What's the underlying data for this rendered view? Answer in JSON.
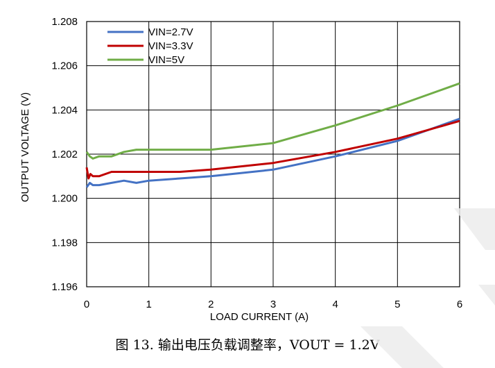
{
  "chart_data": {
    "type": "line",
    "xlabel": "LOAD CURRENT (A)",
    "ylabel": "OUTPUT VOLTAGE (V)",
    "xlim": [
      0,
      6
    ],
    "ylim": [
      1.196,
      1.208
    ],
    "x_ticks": [
      "0",
      "1",
      "2",
      "3",
      "4",
      "5",
      "6"
    ],
    "y_ticks": [
      "1.196",
      "1.198",
      "1.200",
      "1.202",
      "1.204",
      "1.206",
      "1.208"
    ],
    "grid": true,
    "legend_position": "top-left",
    "series": [
      {
        "name": "VIN=2.7V",
        "color": "#4472c4",
        "x": [
          0,
          0.05,
          0.1,
          0.2,
          0.4,
          0.6,
          0.8,
          1.0,
          1.5,
          2.0,
          3.0,
          4.0,
          5.0,
          6.0
        ],
        "y": [
          1.2005,
          1.2007,
          1.2006,
          1.2006,
          1.2007,
          1.2008,
          1.2007,
          1.2008,
          1.2009,
          1.201,
          1.2013,
          1.2019,
          1.2026,
          1.2036
        ]
      },
      {
        "name": "VIN=3.3V",
        "color": "#c00000",
        "x": [
          0,
          0.03,
          0.06,
          0.1,
          0.2,
          0.4,
          0.6,
          0.8,
          1.0,
          1.5,
          2.0,
          3.0,
          4.0,
          5.0,
          6.0
        ],
        "y": [
          1.2014,
          1.2009,
          1.2011,
          1.201,
          1.201,
          1.2012,
          1.2012,
          1.2012,
          1.2012,
          1.2012,
          1.2013,
          1.2016,
          1.2021,
          1.2027,
          1.2035
        ]
      },
      {
        "name": "VIN=5V",
        "color": "#70ad47",
        "x": [
          0,
          0.05,
          0.1,
          0.2,
          0.4,
          0.6,
          0.8,
          1.0,
          1.5,
          2.0,
          3.0,
          4.0,
          5.0,
          6.0
        ],
        "y": [
          1.2021,
          1.2019,
          1.2018,
          1.2019,
          1.2019,
          1.2021,
          1.2022,
          1.2022,
          1.2022,
          1.2022,
          1.2025,
          1.2033,
          1.2042,
          1.2052
        ]
      }
    ]
  },
  "caption": "图 13. 输出电压负载调整率，VOUT = 1.2V",
  "watermark_color": "#ececec"
}
